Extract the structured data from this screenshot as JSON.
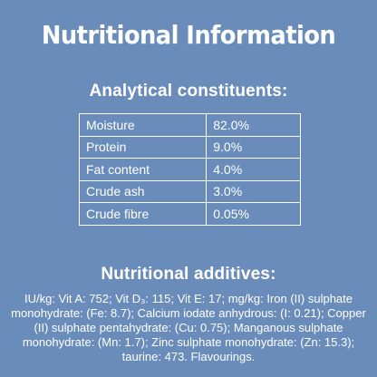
{
  "title": "Nutritional Information",
  "analytical": {
    "heading": "Analytical constituents:",
    "rows": [
      {
        "name": "Moisture",
        "value": "82.0%"
      },
      {
        "name": "Protein",
        "value": "9.0%"
      },
      {
        "name": "Fat content",
        "value": "4.0%"
      },
      {
        "name": "Crude ash",
        "value": "3.0%"
      },
      {
        "name": "Crude fibre",
        "value": "0.05%"
      }
    ]
  },
  "additives": {
    "heading": "Nutritional additives:",
    "text": "IU/kg: Vit A: 752; Vit D₃: 115; Vit E: 17; mg/kg: Iron (II) sulphate monohydrate: (Fe: 8.7); Calcium iodate anhydrous: (I: 0.21); Copper (II) sulphate pentahydrate: (Cu: 0.75); Manganous sulphate monohydrate: (Mn: 1.7); Zinc sulphate monohydrate: (Zn: 15.3); taurine: 473. Flavourings."
  },
  "colors": {
    "background": "#6a8cbb",
    "text": "#ffffff"
  }
}
